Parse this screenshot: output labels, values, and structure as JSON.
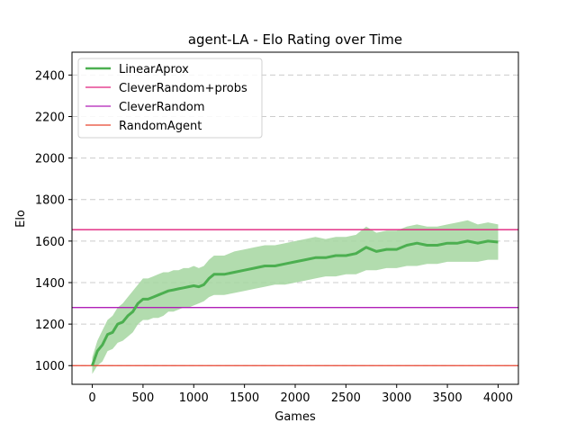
{
  "chart_data": {
    "type": "line",
    "title": "agent-LA - Elo Rating over Time",
    "xlabel": "Games",
    "ylabel": "Elo",
    "xlim": [
      -200,
      4200
    ],
    "ylim": [
      910,
      2510
    ],
    "xticks": [
      0,
      500,
      1000,
      1500,
      2000,
      2500,
      3000,
      3500,
      4000
    ],
    "yticks": [
      1000,
      1200,
      1400,
      1600,
      1800,
      2000,
      2200,
      2400
    ],
    "grid": "horizontal-dashed",
    "legend_position": "top-left",
    "series": [
      {
        "name": "LinearAprox",
        "color": "#4caf50",
        "band_color": "#a5d6a0",
        "x": [
          0,
          50,
          100,
          150,
          200,
          250,
          300,
          350,
          400,
          450,
          500,
          550,
          600,
          650,
          700,
          750,
          800,
          850,
          900,
          950,
          1000,
          1050,
          1100,
          1150,
          1200,
          1300,
          1400,
          1500,
          1600,
          1700,
          1800,
          1900,
          2000,
          2100,
          2200,
          2300,
          2400,
          2500,
          2600,
          2700,
          2800,
          2900,
          3000,
          3100,
          3200,
          3300,
          3400,
          3500,
          3600,
          3700,
          3800,
          3900,
          4000
        ],
        "values": [
          1000,
          1070,
          1100,
          1150,
          1160,
          1200,
          1210,
          1240,
          1260,
          1300,
          1320,
          1320,
          1330,
          1340,
          1350,
          1360,
          1365,
          1370,
          1375,
          1380,
          1385,
          1380,
          1390,
          1420,
          1440,
          1440,
          1450,
          1460,
          1470,
          1480,
          1480,
          1490,
          1500,
          1510,
          1520,
          1520,
          1530,
          1530,
          1540,
          1570,
          1550,
          1560,
          1560,
          1580,
          1590,
          1580,
          1580,
          1590,
          1590,
          1600,
          1590,
          1600,
          1595
        ],
        "lower": [
          960,
          1000,
          1020,
          1070,
          1080,
          1110,
          1120,
          1140,
          1160,
          1200,
          1220,
          1220,
          1230,
          1230,
          1240,
          1260,
          1260,
          1270,
          1280,
          1280,
          1290,
          1300,
          1310,
          1330,
          1340,
          1340,
          1350,
          1360,
          1370,
          1380,
          1390,
          1390,
          1400,
          1410,
          1420,
          1430,
          1430,
          1440,
          1440,
          1460,
          1460,
          1470,
          1470,
          1480,
          1480,
          1490,
          1490,
          1500,
          1500,
          1500,
          1500,
          1510,
          1510
        ],
        "upper": [
          1040,
          1120,
          1170,
          1220,
          1240,
          1280,
          1300,
          1330,
          1360,
          1390,
          1420,
          1420,
          1430,
          1440,
          1450,
          1450,
          1460,
          1460,
          1470,
          1470,
          1480,
          1470,
          1480,
          1510,
          1530,
          1530,
          1550,
          1560,
          1570,
          1580,
          1580,
          1590,
          1600,
          1610,
          1620,
          1610,
          1620,
          1620,
          1630,
          1670,
          1640,
          1650,
          1650,
          1670,
          1680,
          1670,
          1670,
          1680,
          1690,
          1700,
          1680,
          1690,
          1680
        ]
      }
    ],
    "reference_lines": [
      {
        "name": "CleverRandom+probs",
        "value": 1655,
        "color": "#e0217d"
      },
      {
        "name": "CleverRandom",
        "value": 1280,
        "color": "#b01fb8"
      },
      {
        "name": "RandomAgent",
        "value": 1000,
        "color": "#e8432f"
      }
    ]
  }
}
